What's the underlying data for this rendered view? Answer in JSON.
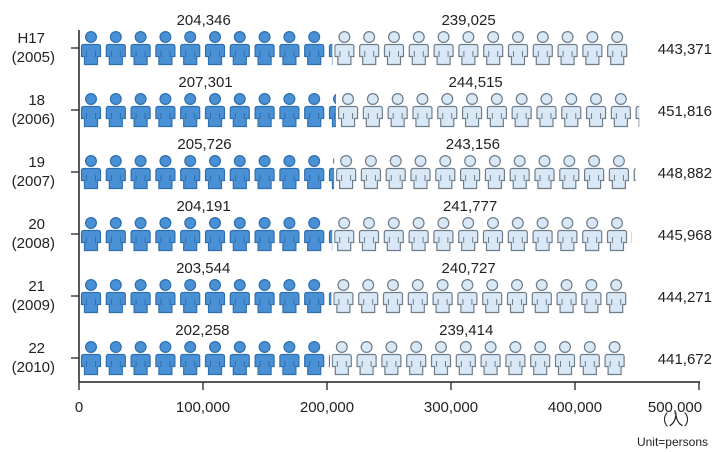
{
  "chart_data": {
    "type": "bar",
    "stacked": true,
    "orientation": "horizontal",
    "pictograph": "person-icon",
    "categories": [
      {
        "year": "H17",
        "western": "(2005)"
      },
      {
        "year": "18",
        "western": "(2006)"
      },
      {
        "year": "19",
        "western": "(2007)"
      },
      {
        "year": "20",
        "western": "(2008)"
      },
      {
        "year": "21",
        "western": "(2009)"
      },
      {
        "year": "22",
        "western": "(2010)"
      }
    ],
    "series": [
      {
        "color": "#4a90d4",
        "values": [
          204346,
          207301,
          205726,
          204191,
          203544,
          202258
        ],
        "labels": [
          "204,346",
          "207,301",
          "205,726",
          "204,191",
          "203,544",
          "202,258"
        ]
      },
      {
        "color": "#d8e8f6",
        "values": [
          239025,
          244515,
          243156,
          241777,
          240727,
          239414
        ],
        "labels": [
          "239,025",
          "244,515",
          "243,156",
          "241,777",
          "240,727",
          "239,414"
        ]
      }
    ],
    "totals": [
      443371,
      451816,
      448882,
      445968,
      444271,
      441672
    ],
    "total_labels": [
      "443,371",
      "451,816",
      "448,882",
      "445,968",
      "444,271",
      "441,672"
    ],
    "xlim": [
      0,
      500000
    ],
    "xticks": [
      0,
      100000,
      200000,
      300000,
      400000,
      500000
    ],
    "xtick_labels": [
      "0",
      "100,000",
      "200,000",
      "300,000",
      "400,000",
      "500,000"
    ],
    "unit_symbol": "（人）",
    "unit_note": "Unit=persons",
    "grid": false
  }
}
